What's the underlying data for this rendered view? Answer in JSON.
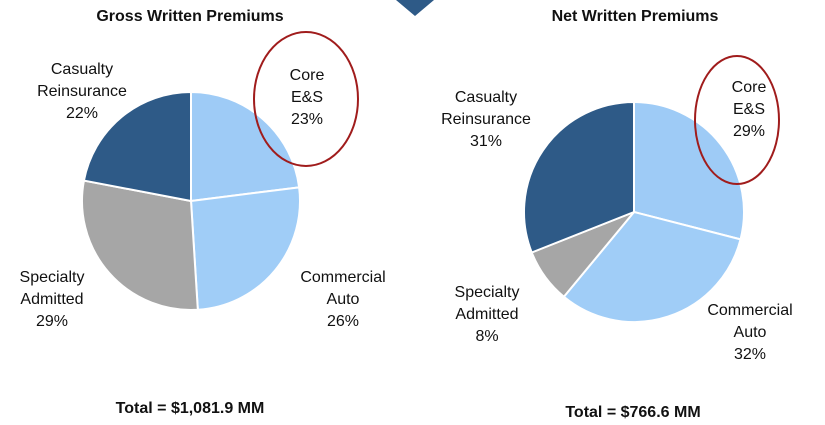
{
  "chart_data": [
    {
      "type": "pie",
      "title": "Gross Written Premiums",
      "subtitle": "Total = $1,081.9 MM",
      "categories": [
        "Core E&S",
        "Commercial Auto",
        "Specialty Admitted",
        "Casualty Reinsurance"
      ],
      "values": [
        23,
        26,
        29,
        22
      ],
      "value_labels": [
        "23%",
        "26%",
        "29%",
        "22%"
      ],
      "colors": [
        "#9ecbf6",
        "#a0cdf7",
        "#a6a6a6",
        "#2e5a87"
      ]
    },
    {
      "type": "pie",
      "title": "Net Written Premiums",
      "subtitle": "Total = $766.6 MM",
      "categories": [
        "Core E&S",
        "Commercial Auto",
        "Specialty Admitted",
        "Casualty Reinsurance"
      ],
      "values": [
        29,
        32,
        8,
        31
      ],
      "value_labels": [
        "29%",
        "32%",
        "8%",
        "31%"
      ],
      "colors": [
        "#9ecbf6",
        "#a0cdf7",
        "#a6a6a6",
        "#2e5a87"
      ]
    }
  ]
}
